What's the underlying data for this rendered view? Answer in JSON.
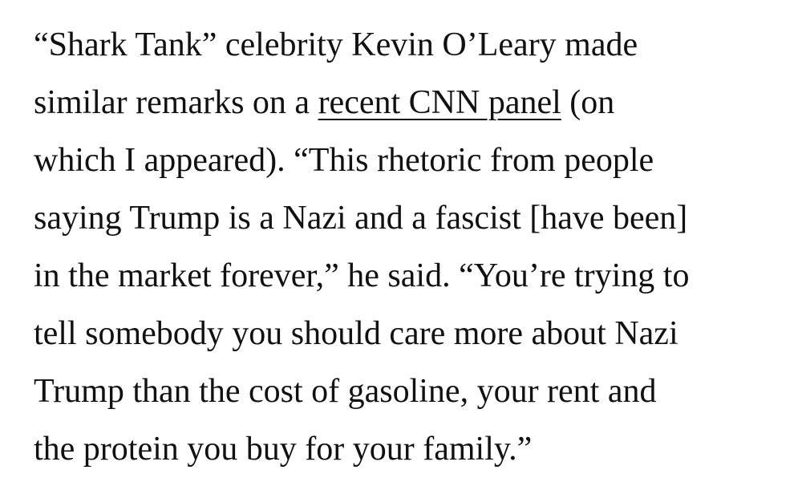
{
  "article": {
    "paragraph": {
      "line1": "“Shark Tank” celebrity Kevin O’Leary made",
      "line2_before_link": "similar remarks on a ",
      "line2_link": "recent CNN panel",
      "line2_after_link": " (on",
      "line3": "which I appeared). “This rhetoric from people",
      "line4": "saying Trump is a Nazi and a fascist [have been]",
      "line5": "in the market forever,” he said. “You’re trying to",
      "line6": "tell somebody you should care more about Nazi",
      "line7": "Trump than the cost of gasoline, your rent and",
      "line8": "the protein you buy for your family.”"
    }
  }
}
